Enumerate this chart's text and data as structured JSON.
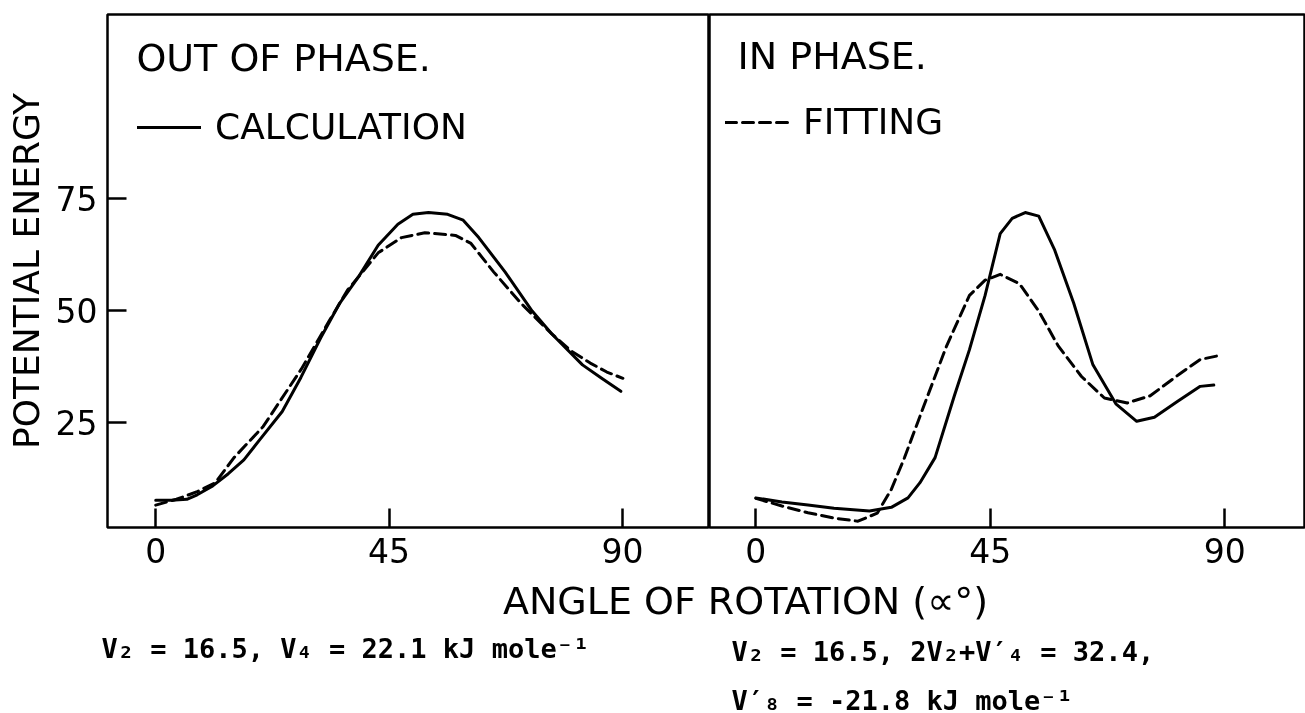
{
  "chart_data": [
    {
      "type": "line",
      "title": "OUT OF PHASE.",
      "xlabel": "ANGLE OF ROTATION (∝°)",
      "ylabel": "POTENTIAL ENERGY",
      "xlim": [
        -9.3,
        106.8
      ],
      "ylim": [
        1.5,
        116
      ],
      "xticks": [
        0,
        45,
        90
      ],
      "yticks": [
        25,
        50,
        75
      ],
      "legend": "top left",
      "series": [
        {
          "name": "CALCULATION",
          "color": "#000000",
          "line_style": "solid",
          "x": [
            0,
            3,
            6,
            8,
            11,
            14,
            17,
            20,
            24.4,
            28,
            31.8,
            35.5,
            39.2,
            42.9,
            46.7,
            49.6,
            52.6,
            56.3,
            59.3,
            62.3,
            67.4,
            72.6,
            76.4,
            82.3,
            86,
            89.7
          ],
          "values": [
            7.6,
            7.6,
            7.8,
            8.8,
            10.8,
            13.5,
            16.6,
            21,
            27.4,
            35,
            43.8,
            51.6,
            57.6,
            64.5,
            69.2,
            71.4,
            71.8,
            71.4,
            70.1,
            66.2,
            58.5,
            49.8,
            44.7,
            37.8,
            34.8,
            31.9
          ]
        },
        {
          "color": "#000000",
          "line_style": "dashed",
          "x": [
            0,
            4,
            8,
            11.5,
            15.1,
            20.7,
            28.1,
            33.3,
            37,
            42.9,
            47.4,
            51.9,
            57.8,
            60.8,
            65.2,
            70.4,
            76.4,
            80,
            83.8,
            87,
            90.1
          ],
          "values": [
            6.5,
            7.8,
            9.5,
            11.5,
            17.1,
            24,
            36.9,
            47.3,
            54.5,
            62.8,
            66.2,
            67.3,
            66.7,
            64.9,
            58.5,
            51.6,
            44.7,
            41,
            38.2,
            36.2,
            34.8
          ]
        }
      ],
      "annotations": [
        "V₂ = 16.5, V₄ = 22.1 kJ mole⁻¹"
      ]
    },
    {
      "type": "line",
      "title": "IN PHASE.",
      "xlim": [
        -8.9,
        105.5
      ],
      "ylim": [
        1.5,
        116
      ],
      "xticks": [
        0,
        45,
        90
      ],
      "tick_labels": "x",
      "legend": "top left",
      "series": [
        {
          "color": "#000000",
          "line_style": "solid",
          "x": [
            0,
            5,
            10,
            15,
            21.8,
            26,
            29.2,
            31.5,
            34.4,
            38.1,
            41,
            44,
            46.9,
            49.2,
            51.7,
            54.3,
            57.3,
            61,
            64.7,
            69.1,
            73.1,
            76.5,
            80.9,
            85.3,
            87.9
          ],
          "values": [
            8.1,
            7.2,
            6.5,
            5.8,
            5.2,
            6,
            8.1,
            11.5,
            17.1,
            30.9,
            41.2,
            53.3,
            67.1,
            70.5,
            71.8,
            71,
            63.6,
            51.6,
            37.8,
            29.1,
            25.2,
            26.1,
            29.6,
            33,
            33.3
          ]
        },
        {
          "name": "FITTING",
          "color": "#000000",
          "line_style": "dashed",
          "x": [
            0,
            5,
            10,
            15,
            19.6,
            23.3,
            26,
            28.5,
            32.2,
            36.6,
            41,
            44,
            46.9,
            50.6,
            54.3,
            58,
            62.5,
            66.9,
            71.3,
            75.7,
            81.6,
            85.3,
            89
          ],
          "values": [
            8,
            6.3,
            4.8,
            3.6,
            2.9,
            4.7,
            10,
            17,
            28.5,
            42,
            53.3,
            56.7,
            58,
            55.9,
            49.8,
            42.1,
            35.2,
            30.4,
            29.3,
            30.9,
            36,
            39,
            39.9
          ]
        }
      ],
      "annotations": [
        "V₂ = 16.5, 2V₂+V′₄ = 32.4,\nV′₈ = -21.8 kJ mole⁻¹"
      ]
    }
  ]
}
